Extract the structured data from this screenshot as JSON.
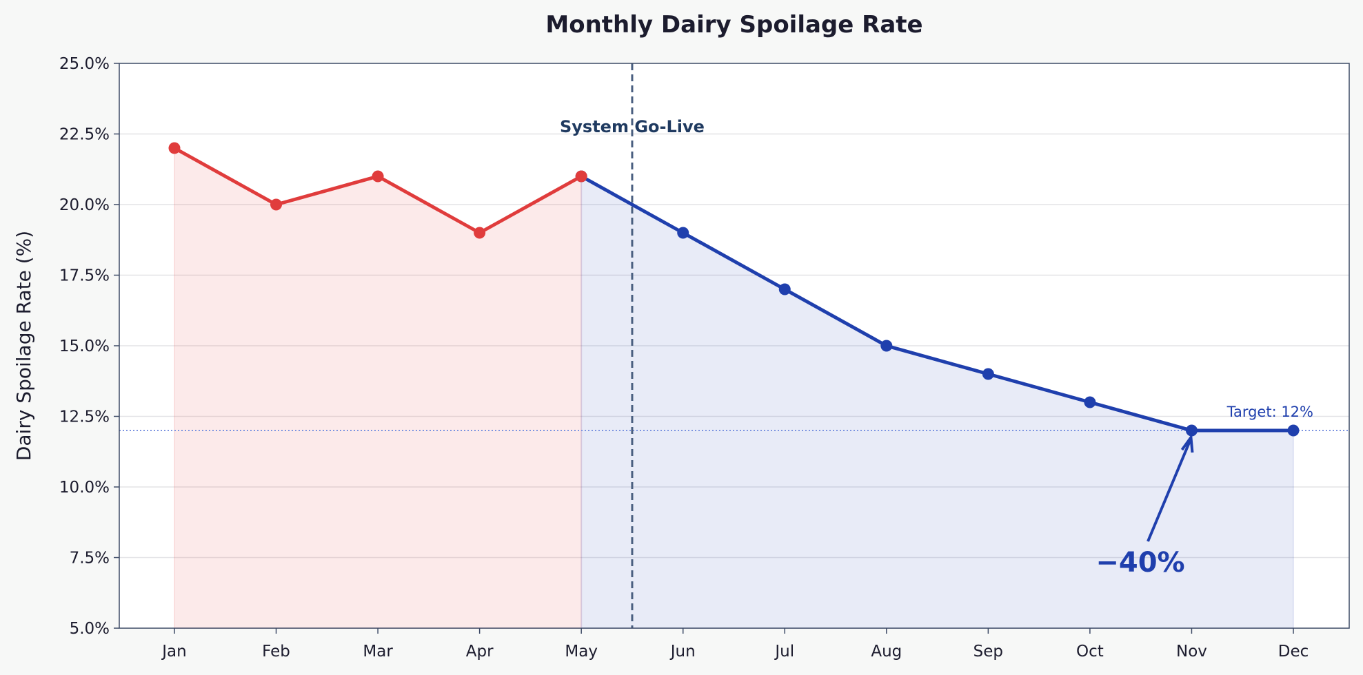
{
  "chart_data": {
    "type": "line",
    "title": "Monthly Dairy Spoilage Rate",
    "xlabel": "",
    "ylabel": "Dairy Spoilage Rate (%)",
    "categories": [
      "Jan",
      "Feb",
      "Mar",
      "Apr",
      "May",
      "Jun",
      "Jul",
      "Aug",
      "Sep",
      "Oct",
      "Nov",
      "Dec"
    ],
    "series": [
      {
        "segment": "before",
        "color": "#e03c3c",
        "values": [
          22,
          20,
          21,
          19,
          21,
          null,
          null,
          null,
          null,
          null,
          null,
          null
        ]
      },
      {
        "segment": "after",
        "color": "#1f3fad",
        "values": [
          null,
          null,
          null,
          null,
          21,
          19,
          17,
          15,
          14,
          13,
          12,
          12
        ]
      }
    ],
    "ylim": [
      5,
      25
    ],
    "yticks": [
      5,
      7.5,
      10,
      12.5,
      15,
      17.5,
      20,
      22.5,
      25
    ],
    "ytick_labels": [
      "5.0%",
      "7.5%",
      "10.0%",
      "12.5%",
      "15.0%",
      "17.5%",
      "20.0%",
      "22.5%",
      "25.0%"
    ],
    "grid": "horizontal",
    "annotations": {
      "golive_label": "System Go-Live",
      "golive_position": "between May and Jun",
      "target_label": "Target: 12%",
      "target_value": 12,
      "change_label": "−40%",
      "change_points_to": "Nov"
    },
    "colors": {
      "before": "#e03c3c",
      "after": "#1f3fad",
      "golive": "#4a5f80",
      "target": "#7b93e0"
    }
  }
}
